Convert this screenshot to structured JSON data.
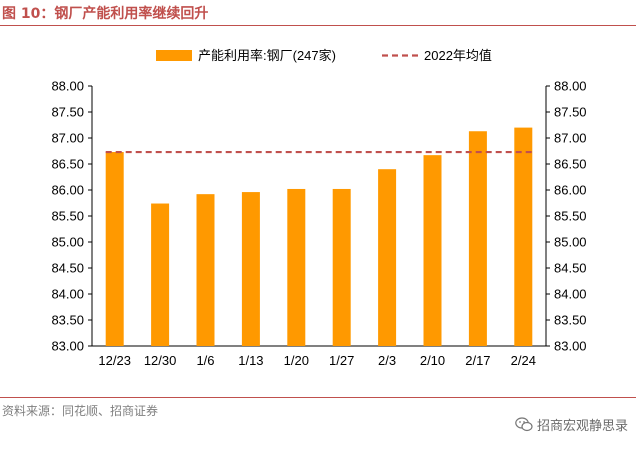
{
  "figure": {
    "title": "图 10：钢厂产能利用率继续回升",
    "source": "资料来源：同花顺、招商证券",
    "watermark": "招商宏观静思录",
    "accent_color": "#c0504d"
  },
  "chart_data": {
    "type": "bar",
    "categories": [
      "12/23",
      "12/30",
      "1/6",
      "1/13",
      "1/20",
      "1/27",
      "2/3",
      "2/10",
      "2/17",
      "2/24"
    ],
    "series": [
      {
        "name": "产能利用率:钢厂(247家)",
        "type": "bar",
        "color": "#ff9900",
        "values": [
          86.73,
          85.74,
          85.92,
          85.96,
          86.02,
          86.02,
          86.4,
          86.67,
          87.13,
          87.2
        ]
      },
      {
        "name": "2022年均值",
        "type": "line",
        "style": "dashed",
        "color": "#c0504d",
        "value": 86.73
      }
    ],
    "ylim": [
      83.0,
      88.0
    ],
    "yticks": [
      "83.00",
      "83.50",
      "84.00",
      "84.50",
      "85.00",
      "85.50",
      "86.00",
      "86.50",
      "87.00",
      "87.50",
      "88.00"
    ],
    "ylim_right": [
      83.0,
      88.0
    ],
    "legend_position": "top",
    "grid": false
  }
}
